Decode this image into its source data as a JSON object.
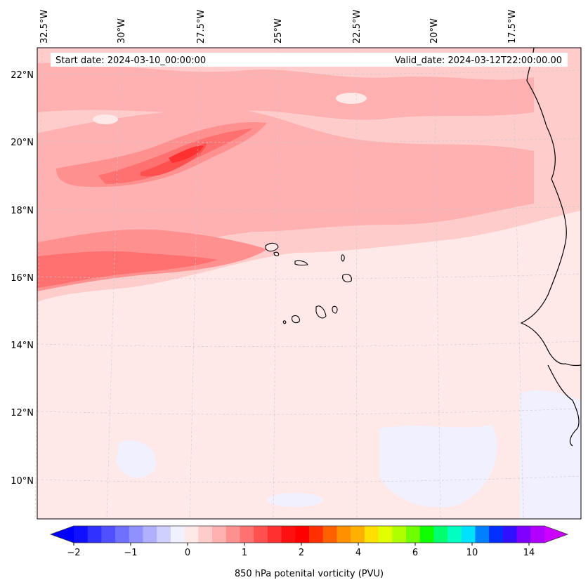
{
  "header": {
    "start_label": "Start date: 2024-03-10_00:00:00",
    "valid_label": "Valid_date: 2024-03-12T22:00:00.00"
  },
  "map": {
    "lon_labels": [
      "32.5°W",
      "30°W",
      "27.5°W",
      "25°W",
      "22.5°W",
      "20°W",
      "17.5°W"
    ],
    "lat_labels": [
      "22°N",
      "20°N",
      "18°N",
      "16°N",
      "14°N",
      "12°N",
      "10°N"
    ]
  },
  "colorbar": {
    "label": "850 hPa potenital vorticity (PVU)",
    "ticks": [
      "−2",
      "−1",
      "0",
      "1",
      "2",
      "4",
      "6",
      "10",
      "14"
    ],
    "colors": [
      "#1010ff",
      "#3030ff",
      "#5050ff",
      "#7070ff",
      "#9090ff",
      "#b0b0ff",
      "#d0d0ff",
      "#f0f0ff",
      "#ffe8e8",
      "#ffcccc",
      "#ffb0b0",
      "#ff9090",
      "#ff7070",
      "#ff5050",
      "#ff3030",
      "#ff1010",
      "#ff0000",
      "#ff3000",
      "#ff6000",
      "#ff9000",
      "#ffb000",
      "#ffe000",
      "#e0ff00",
      "#b0ff00",
      "#70ff00",
      "#10ff00",
      "#00ff70",
      "#00ffc0",
      "#00e0ff",
      "#0080ff",
      "#0030ff",
      "#3010ff",
      "#8000ff",
      "#b000ff"
    ],
    "extend_low_color": "#0000ff",
    "extend_high_color": "#cc00ff"
  }
}
